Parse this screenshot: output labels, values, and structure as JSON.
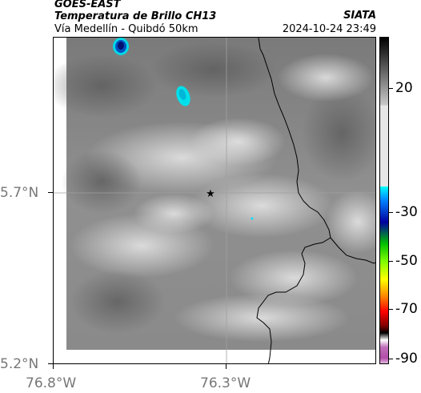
{
  "header": {
    "satellite": "GOES-EAST",
    "product": "Temperatura de Brillo CH13",
    "region": "Vía Medellín - Quibdó 50km",
    "agency": "SIATA",
    "timestamp": "2024-10-24 23:49"
  },
  "map": {
    "y_axis_labels": [
      "5.7°N",
      "5.2°N"
    ],
    "x_axis_labels": [
      "76.8°W",
      "76.3°W"
    ],
    "marker_icon": "star-icon"
  },
  "colorbar": {
    "tick_labels": [
      "20",
      "-30",
      "-50",
      "-70",
      "-90"
    ],
    "colors": [
      "#f2d6ee",
      "#b34ca8",
      "#000000",
      "#ff0000",
      "#ffff00",
      "#00c000",
      "#0000a0",
      "#00ffff",
      "#ffffff",
      "#000000"
    ]
  }
}
